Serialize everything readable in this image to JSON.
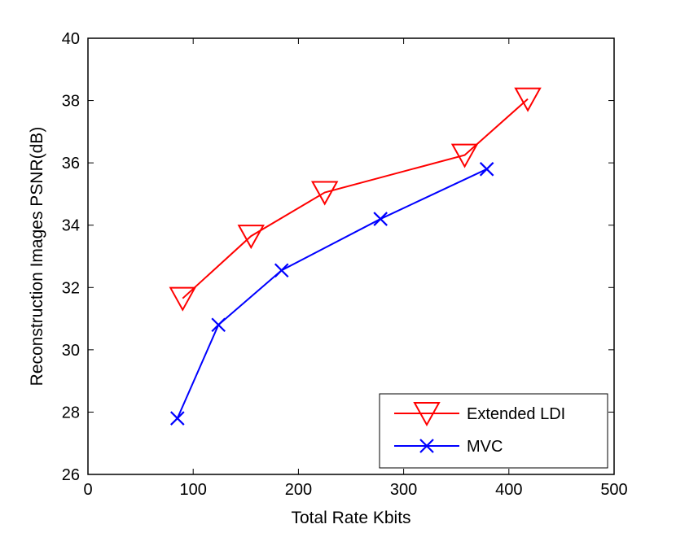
{
  "chart_data": {
    "type": "line",
    "title": "",
    "xlabel": "Total Rate Kbits",
    "ylabel": "Reconstruction Images PSNR(dB)",
    "xlim": [
      0,
      500
    ],
    "ylim": [
      26,
      40
    ],
    "xticks": [
      0,
      100,
      200,
      300,
      400,
      500
    ],
    "yticks": [
      26,
      28,
      30,
      32,
      34,
      36,
      38,
      40
    ],
    "grid": false,
    "legend_position": "bottom-right",
    "series": [
      {
        "name": "Extended LDI",
        "color": "#ff0000",
        "marker": "triangle-down",
        "x": [
          90,
          155,
          225,
          358,
          418
        ],
        "y": [
          31.65,
          33.65,
          35.05,
          36.25,
          38.05
        ]
      },
      {
        "name": "MVC",
        "color": "#0000ff",
        "marker": "x",
        "x": [
          85,
          124,
          184,
          278,
          379
        ],
        "y": [
          27.8,
          30.8,
          32.55,
          34.2,
          35.8
        ]
      }
    ]
  }
}
